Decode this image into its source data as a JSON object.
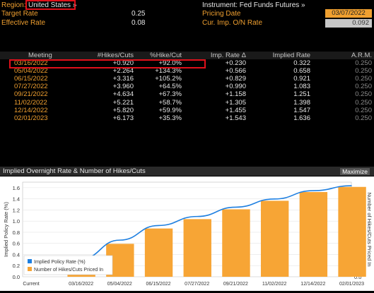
{
  "header": {
    "region_label": "Region:",
    "region_value": "United States »",
    "instrument": "Instrument: Fed Funds Futures »",
    "target_rate_label": "Target Rate",
    "target_rate_value": "0.25",
    "effective_rate_label": "Effective Rate",
    "effective_rate_value": "0.08",
    "pricing_date_label": "Pricing Date",
    "pricing_date_value": "03/07/2022",
    "cur_imp_label": "Cur. Imp. O/N Rate",
    "cur_imp_value": "0.092"
  },
  "table": {
    "columns": [
      "Meeting",
      "#Hikes/Cuts",
      "%Hike/Cut",
      "Imp. Rate Δ",
      "Implied Rate",
      "A.R.M."
    ],
    "rows": [
      {
        "meeting": "03/16/2022",
        "hikes": "+0.920",
        "pct": "+92.0%",
        "delta": "+0.230",
        "rate": "0.322",
        "arm": "0.250"
      },
      {
        "meeting": "05/04/2022",
        "hikes": "+2.264",
        "pct": "+134.3%",
        "delta": "+0.566",
        "rate": "0.658",
        "arm": "0.250"
      },
      {
        "meeting": "06/15/2022",
        "hikes": "+3.316",
        "pct": "+105.2%",
        "delta": "+0.829",
        "rate": "0.921",
        "arm": "0.250"
      },
      {
        "meeting": "07/27/2022",
        "hikes": "+3.960",
        "pct": "+64.5%",
        "delta": "+0.990",
        "rate": "1.083",
        "arm": "0.250"
      },
      {
        "meeting": "09/21/2022",
        "hikes": "+4.634",
        "pct": "+67.3%",
        "delta": "+1.158",
        "rate": "1.251",
        "arm": "0.250"
      },
      {
        "meeting": "11/02/2022",
        "hikes": "+5.221",
        "pct": "+58.7%",
        "delta": "+1.305",
        "rate": "1.398",
        "arm": "0.250"
      },
      {
        "meeting": "12/14/2022",
        "hikes": "+5.820",
        "pct": "+59.9%",
        "delta": "+1.455",
        "rate": "1.547",
        "arm": "0.250"
      },
      {
        "meeting": "02/01/2023",
        "hikes": "+6.173",
        "pct": "+35.3%",
        "delta": "+1.543",
        "rate": "1.636",
        "arm": "0.250"
      }
    ]
  },
  "chart_header": {
    "title": "Implied Overnight Rate & Number of Hikes/Cuts",
    "maximize_label": "Maximize"
  },
  "colors": {
    "accent": "#f0a030",
    "bar": "#f7a535",
    "line": "#1e7fe0",
    "highlight": "#e0101a"
  },
  "chart_data": {
    "type": "bar",
    "categories": [
      "Current",
      "03/16/2022",
      "05/04/2022",
      "06/15/2022",
      "07/27/2022",
      "09/21/2022",
      "11/02/2022",
      "12/14/2022",
      "02/01/2023"
    ],
    "series": [
      {
        "name": "Implied Policy Rate (%)",
        "type": "line",
        "axis": "left",
        "values": [
          0.092,
          0.322,
          0.658,
          0.921,
          1.083,
          1.251,
          1.398,
          1.547,
          1.636
        ]
      },
      {
        "name": "Number of Hikes/Cuts Priced In",
        "type": "bar",
        "axis": "right",
        "values": [
          0,
          0.92,
          2.264,
          3.316,
          3.96,
          4.634,
          5.221,
          5.82,
          6.173
        ]
      }
    ],
    "ylabel": "Implied Policy Rate (%)",
    "y2label": "Number of Hikes/Cuts Priced In",
    "ylim": [
      0,
      1.7
    ],
    "y2lim": [
      0,
      6.5
    ],
    "yticks": [
      "0.0",
      "0.2",
      "0.4",
      "0.6",
      "0.8",
      "1.0",
      "1.2",
      "1.4",
      "1.6"
    ],
    "y2ticks": [
      "0.0",
      "1.0",
      "2.0",
      "3.0",
      "4.0",
      "5.0",
      "6.0"
    ],
    "legend_position": "bottom-left"
  }
}
